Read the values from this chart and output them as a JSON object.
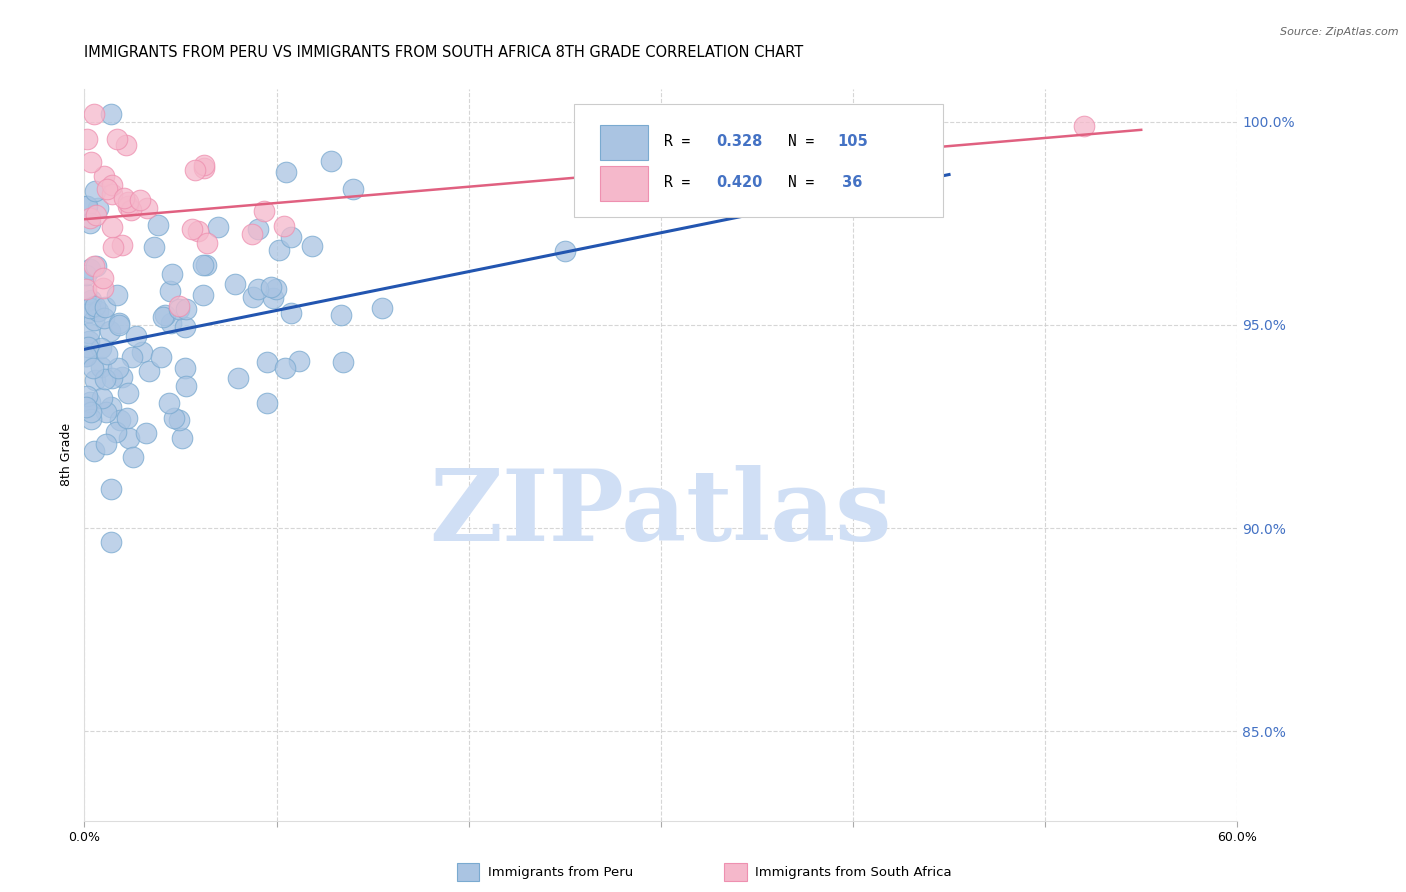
{
  "title": "IMMIGRANTS FROM PERU VS IMMIGRANTS FROM SOUTH AFRICA 8TH GRADE CORRELATION CHART",
  "source": "Source: ZipAtlas.com",
  "ylabel": "8th Grade",
  "legend_label1": "Immigrants from Peru",
  "legend_label2": "Immigrants from South Africa",
  "R1": "0.328",
  "N1": "105",
  "R2": "0.420",
  "N2": " 36",
  "xlim": [
    0.0,
    0.6
  ],
  "ylim": [
    0.828,
    1.008
  ],
  "xticks": [
    0.0,
    0.1,
    0.2,
    0.3,
    0.4,
    0.5,
    0.6
  ],
  "xticklabels": [
    "0.0%",
    "",
    "",
    "",
    "",
    "",
    "60.0%"
  ],
  "yticks": [
    0.85,
    0.9,
    0.95,
    1.0
  ],
  "yticklabels": [
    "85.0%",
    "90.0%",
    "95.0%",
    "100.0%"
  ],
  "color_peru": "#aac4e2",
  "color_sa": "#f5b8cb",
  "color_peru_edge": "#7aaad0",
  "color_sa_edge": "#ee90b0",
  "color_peru_line": "#2255b0",
  "color_sa_line": "#e06080",
  "watermark_color": "#d0dff5",
  "background_color": "#ffffff",
  "grid_color": "#cccccc",
  "title_fontsize": 10.5,
  "tick_label_color": "#4472c4",
  "peru_line_x": [
    0.0,
    0.45
  ],
  "peru_line_y": [
    0.944,
    0.987
  ],
  "sa_line_x": [
    0.0,
    0.55
  ],
  "sa_line_y": [
    0.976,
    0.998
  ]
}
